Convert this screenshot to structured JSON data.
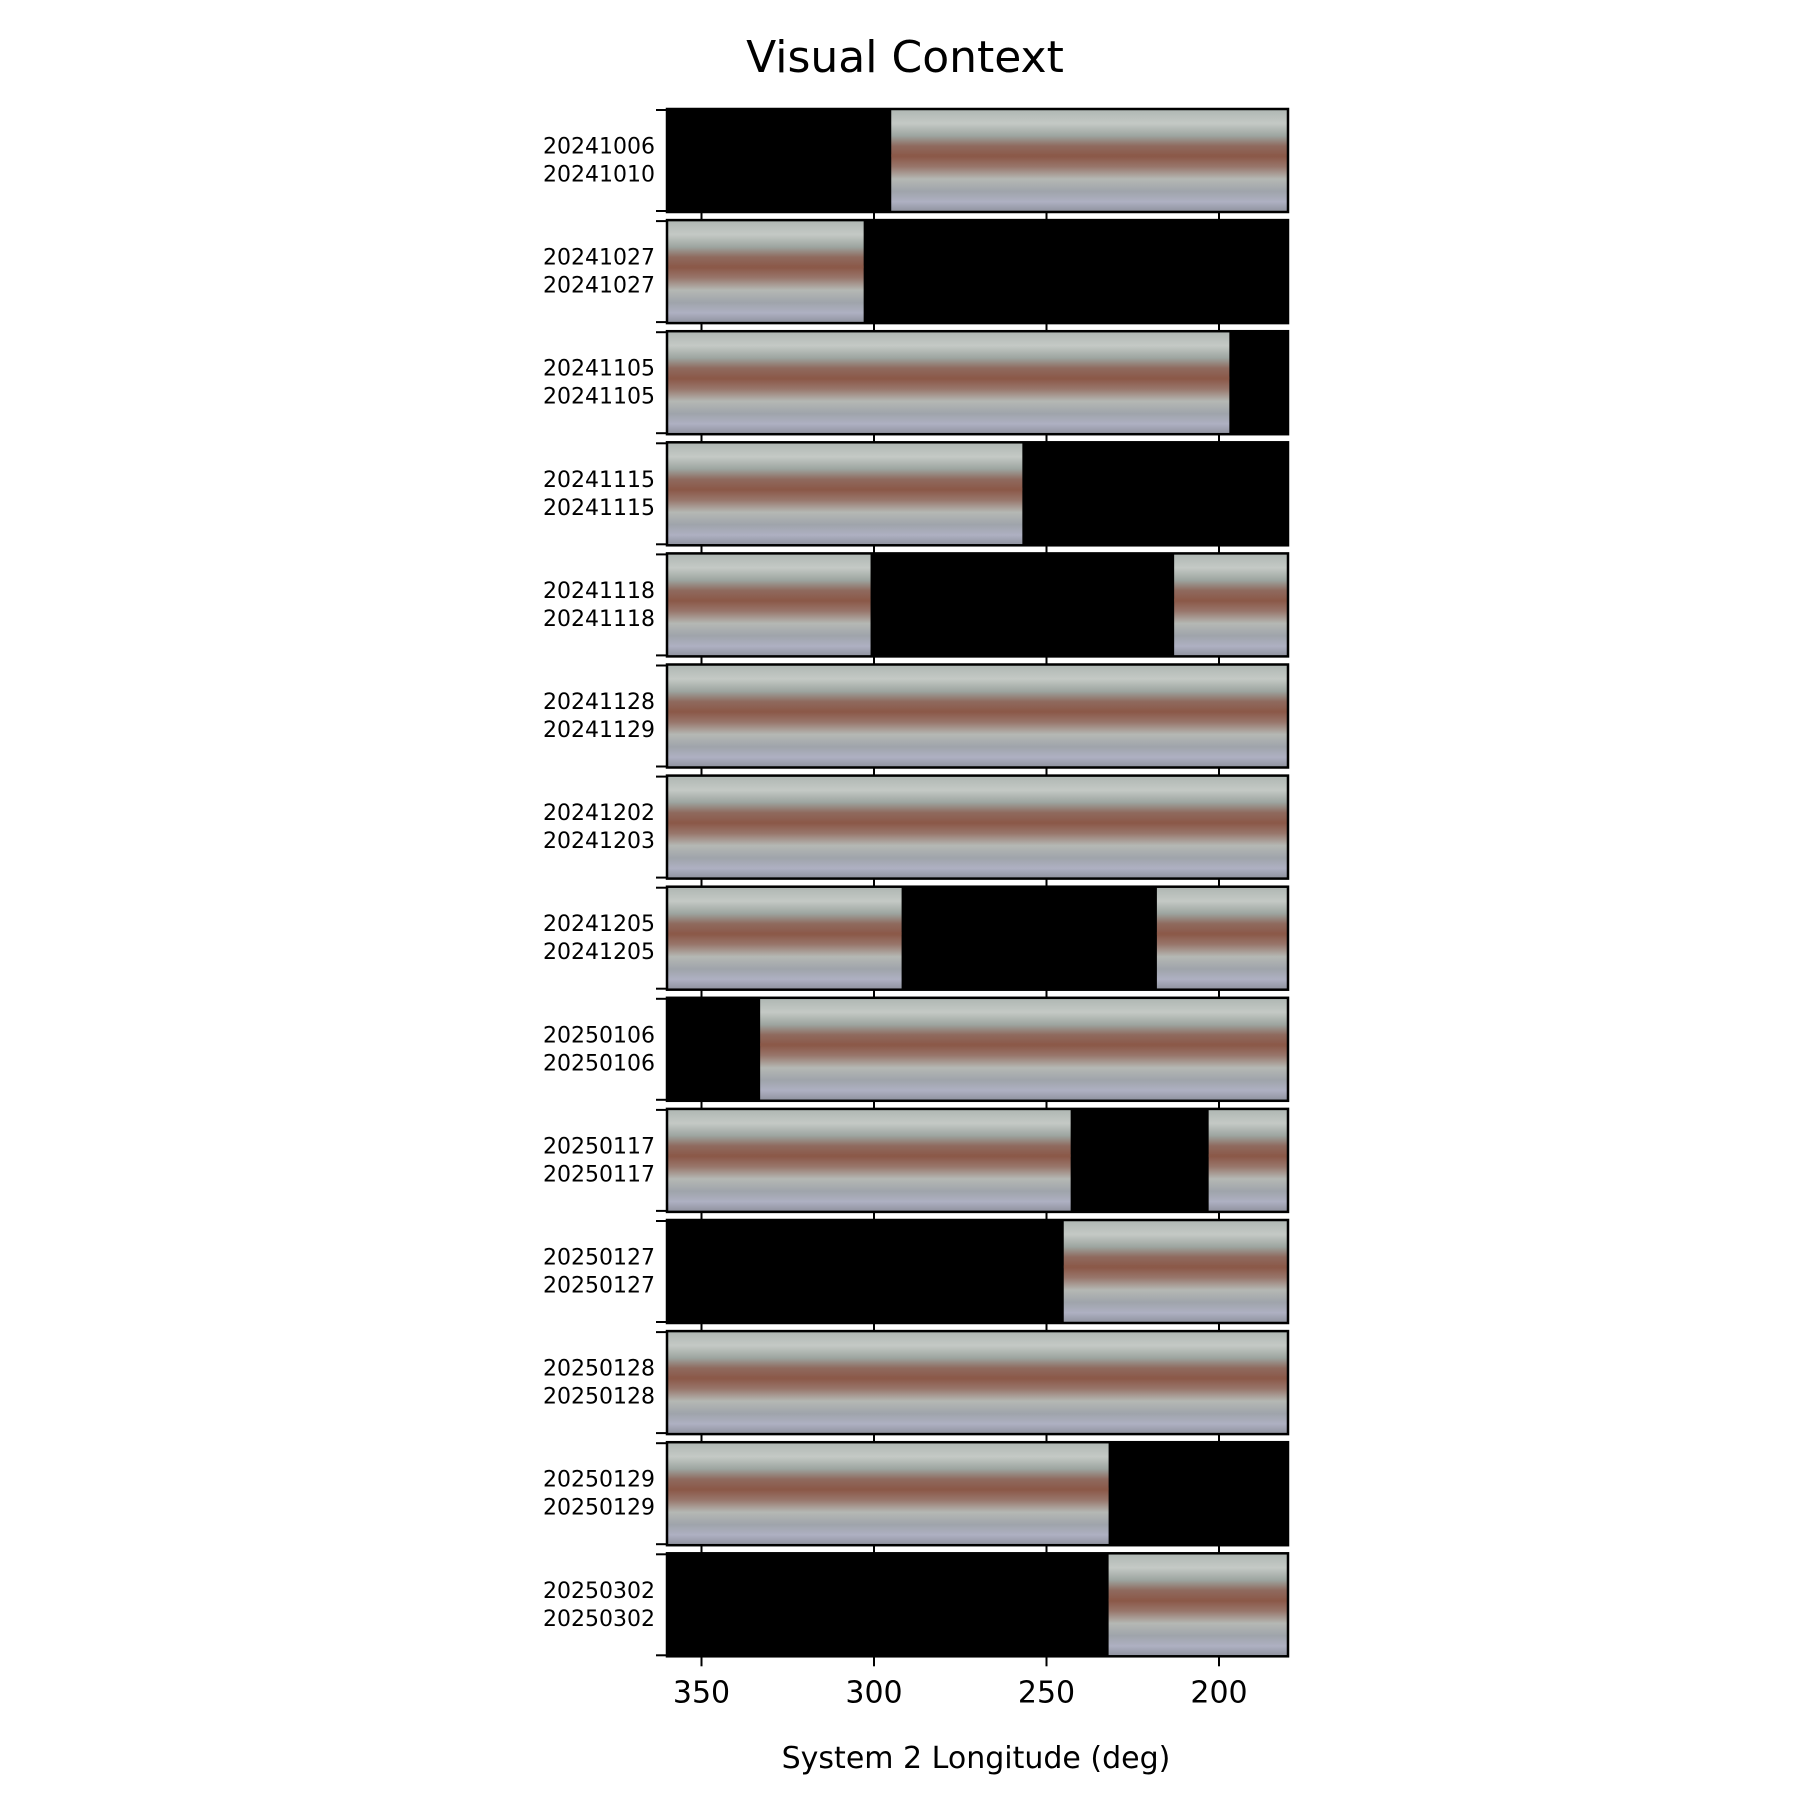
{
  "chart_data": {
    "type": "heatmap",
    "title": "Visual Context",
    "xlabel": "System 2 Longitude (deg)",
    "ylabel": "",
    "xlim": [
      360,
      180
    ],
    "x_direction": "decreasing",
    "xticks": [
      350,
      300,
      250,
      200
    ],
    "grid": false,
    "colors": {
      "background_no_data": "#000000",
      "band_light": "#b4b9b6",
      "band_red": "#8c5a4a",
      "band_blue": "#a8acc2"
    },
    "rows": [
      {
        "start_date": "20241006",
        "end_date": "20241010",
        "coverage": [
          [
            295,
            180
          ]
        ]
      },
      {
        "start_date": "20241027",
        "end_date": "20241027",
        "coverage": [
          [
            360,
            303
          ]
        ]
      },
      {
        "start_date": "20241105",
        "end_date": "20241105",
        "coverage": [
          [
            360,
            197
          ]
        ]
      },
      {
        "start_date": "20241115",
        "end_date": "20241115",
        "coverage": [
          [
            360,
            257
          ]
        ]
      },
      {
        "start_date": "20241118",
        "end_date": "20241118",
        "coverage": [
          [
            360,
            301
          ],
          [
            213,
            180
          ]
        ]
      },
      {
        "start_date": "20241128",
        "end_date": "20241129",
        "coverage": [
          [
            360,
            180
          ]
        ]
      },
      {
        "start_date": "20241202",
        "end_date": "20241203",
        "coverage": [
          [
            360,
            180
          ]
        ]
      },
      {
        "start_date": "20241205",
        "end_date": "20241205",
        "coverage": [
          [
            360,
            292
          ],
          [
            218,
            180
          ]
        ]
      },
      {
        "start_date": "20250106",
        "end_date": "20250106",
        "coverage": [
          [
            333,
            180
          ]
        ]
      },
      {
        "start_date": "20250117",
        "end_date": "20250117",
        "coverage": [
          [
            360,
            243
          ],
          [
            203,
            180
          ]
        ]
      },
      {
        "start_date": "20250127",
        "end_date": "20250127",
        "coverage": [
          [
            245,
            180
          ]
        ]
      },
      {
        "start_date": "20250128",
        "end_date": "20250128",
        "coverage": [
          [
            360,
            180
          ]
        ]
      },
      {
        "start_date": "20250129",
        "end_date": "20250129",
        "coverage": [
          [
            360,
            232
          ]
        ]
      },
      {
        "start_date": "20250302",
        "end_date": "20250302",
        "coverage": [
          [
            232,
            180
          ]
        ]
      }
    ]
  }
}
